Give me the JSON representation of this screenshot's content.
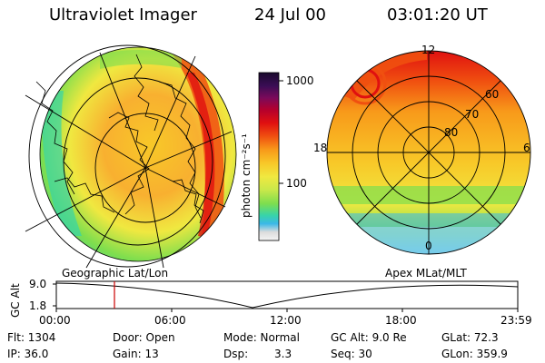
{
  "header": {
    "instrument": "Ultraviolet Imager",
    "date": "24 Jul 00",
    "time": "03:01:20 UT"
  },
  "colorbar": {
    "unit_label": "photon cm⁻²s⁻¹",
    "ticks": [
      "1000",
      "100"
    ],
    "colors": [
      "#1a0a2e",
      "#3b0d55",
      "#7a0a5a",
      "#b4002e",
      "#e01010",
      "#f05010",
      "#f89a1a",
      "#f8c828",
      "#f0e840",
      "#c8e84a",
      "#7ede4e",
      "#38d4a8",
      "#3ab8e8",
      "#9ed8f0",
      "#dcdcdc",
      "#f4f4f4"
    ]
  },
  "map_left": {
    "label": "Geographic Lat/Lon"
  },
  "map_right": {
    "label": "Apex MLat/MLT",
    "lat_labels": [
      "60",
      "70",
      "80"
    ],
    "mlt_labels": [
      "12",
      "18",
      "6",
      "0"
    ]
  },
  "altitude_plot": {
    "ylabel": "GC Alt",
    "yticks": [
      "9.0",
      "1.8"
    ],
    "xticks": [
      "00:00",
      "06:00",
      "12:00",
      "18:00",
      "23:59"
    ],
    "current_time_fraction": 0.126,
    "marker_color": "#cc0000"
  },
  "info": {
    "flt": "Flt:  1304",
    "ip": "IP:  36.0",
    "door": "Door:  Open",
    "gain": "Gain:  13",
    "mode": "Mode:  Normal",
    "dsp_label": "Dsp:",
    "dsp_value": "3.3",
    "gcalt": "GC Alt:  9.0 Re",
    "seq": "Seq:  30",
    "glat": "GLat:  72.3",
    "glon": "GLon:  359.9"
  }
}
